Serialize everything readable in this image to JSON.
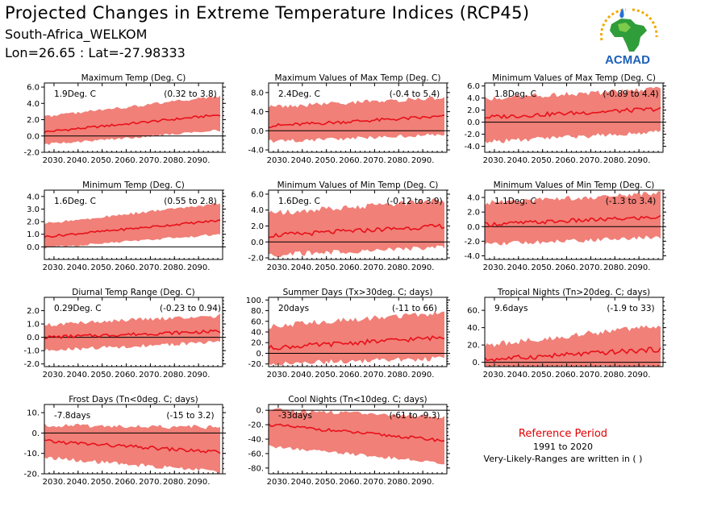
{
  "header": {
    "title": "Projected Changes in Extreme Temperature Indices (RCP45)",
    "subtitle_location": "South-Africa_WELKOM",
    "subtitle_coords": "Lon=26.65 : Lat=-27.98333"
  },
  "logo": {
    "text": "ACMAD",
    "icon": "acmad-africa-logo"
  },
  "legend_note": {
    "title": "Reference Period",
    "years": "1991 to 2020",
    "note": "Very-Likely-Ranges are written in ( )"
  },
  "colors": {
    "band": "#f08078",
    "line": "#e8101a",
    "zero": "#000000",
    "ref_title": "#e00000"
  },
  "chart_data": [
    {
      "type": "area",
      "title": "Maximum Temp (Deg. C)",
      "value_text": "1.9Deg. C",
      "range_text": "(0.32 to 3.8)",
      "x_ticks": [
        "2030.",
        "2040.",
        "2050.",
        "2060.",
        "2070.",
        "2080.",
        "2090."
      ],
      "xlim": [
        2026,
        2100
      ],
      "ylim": [
        -2,
        6.5
      ],
      "y_ticks": [
        "-2.0",
        "0.0",
        "2.0",
        "4.0",
        "6.0"
      ],
      "y_tick_values": [
        -2,
        0,
        2,
        4,
        6
      ],
      "center_start": 0.5,
      "center_end": 2.6,
      "lower_start": -0.7,
      "lower_end": 1.0,
      "upper_start": 2.0,
      "upper_end": 4.5,
      "noise": 0.4
    },
    {
      "type": "area",
      "title": "Maximum Values of Max Temp (Deg. C)",
      "value_text": "2.4Deg. C",
      "range_text": "(-0.4 to 5.4)",
      "x_ticks": [
        "2030.",
        "2040.",
        "2050.",
        "2060.",
        "2070.",
        "2080.",
        "2090."
      ],
      "xlim": [
        2026,
        2100
      ],
      "ylim": [
        -4.5,
        10
      ],
      "y_ticks": [
        "-4.0",
        "0.0",
        "4.0",
        "8.0"
      ],
      "y_tick_values": [
        -4,
        0,
        4,
        8
      ],
      "center_start": 1.0,
      "center_end": 3.0,
      "lower_start": -1.5,
      "lower_end": 0.0,
      "upper_start": 4.0,
      "upper_end": 6.0,
      "noise": 1.0
    },
    {
      "type": "area",
      "title": "Minimum Values of Max Temp (Deg. C)",
      "value_text": "1.8Deg. C",
      "range_text": "(-0.89 to 4.4)",
      "x_ticks": [
        "2030.",
        "2040.",
        "2050.",
        "2060.",
        "2070.",
        "2080.",
        "2090."
      ],
      "xlim": [
        2026,
        2100
      ],
      "ylim": [
        -5,
        6.5
      ],
      "y_ticks": [
        "-4.0",
        "-2.0",
        "0.0",
        "2.0",
        "4.0",
        "6.0"
      ],
      "y_tick_values": [
        -4,
        -2,
        0,
        2,
        4,
        6
      ],
      "center_start": 0.8,
      "center_end": 2.2,
      "lower_start": -2.5,
      "lower_end": -0.8,
      "upper_start": 3.0,
      "upper_end": 4.5,
      "noise": 1.0
    },
    {
      "type": "area",
      "title": "Minimum Temp (Deg. C)",
      "value_text": "1.6Deg. C",
      "range_text": "(0.55 to 2.8)",
      "x_ticks": [
        "2030.",
        "2040.",
        "2050.",
        "2060.",
        "2070.",
        "2080.",
        "2090."
      ],
      "xlim": [
        2026,
        2100
      ],
      "ylim": [
        -1,
        4.5
      ],
      "y_ticks": [
        "0.0",
        "1.0",
        "2.0",
        "3.0",
        "4.0"
      ],
      "y_tick_values": [
        0,
        1,
        2,
        3,
        4
      ],
      "center_start": 0.8,
      "center_end": 2.1,
      "lower_start": 0.1,
      "lower_end": 1.2,
      "upper_start": 1.6,
      "upper_end": 3.2,
      "noise": 0.25
    },
    {
      "type": "area",
      "title": "Minimum Values of Min Temp (Deg. C)",
      "value_text": "1.6Deg. C",
      "range_text": "(-0.12 to 3.9)",
      "x_ticks": [
        "2030.",
        "2040.",
        "2050.",
        "2060.",
        "2070.",
        "2080.",
        "2090."
      ],
      "xlim": [
        2026,
        2100
      ],
      "ylim": [
        -2.2,
        6.5
      ],
      "y_ticks": [
        "-2.0",
        "0.0",
        "2.0",
        "4.0",
        "6.0"
      ],
      "y_tick_values": [
        -2,
        0,
        2,
        4,
        6
      ],
      "center_start": 0.8,
      "center_end": 2.0,
      "lower_start": -1.0,
      "lower_end": 0.0,
      "upper_start": 2.8,
      "upper_end": 4.5,
      "noise": 0.8
    },
    {
      "type": "area",
      "title": "Minimum Values of Min Temp (Deg. C)",
      "value_text": "1.1Deg. C",
      "range_text": "(-1.3 to 3.4)",
      "x_ticks": [
        "2030.",
        "2040.",
        "2050.",
        "2060.",
        "2070.",
        "2080.",
        "2090."
      ],
      "xlim": [
        2026,
        2100
      ],
      "ylim": [
        -4.5,
        5
      ],
      "y_ticks": [
        "-4.0",
        "-2.0",
        "0.0",
        "2.0",
        "4.0"
      ],
      "y_tick_values": [
        -4,
        -2,
        0,
        2,
        4
      ],
      "center_start": 0.3,
      "center_end": 1.3,
      "lower_start": -1.8,
      "lower_end": -0.8,
      "upper_start": 2.5,
      "upper_end": 3.8,
      "noise": 0.8
    },
    {
      "type": "area",
      "title": "Diurnal Temp Range (Deg. C)",
      "value_text": "0.29Deg. C",
      "range_text": "(-0.23 to 0.94)",
      "x_ticks": [
        "2030.",
        "2040.",
        "2050.",
        "2060.",
        "2070.",
        "2080.",
        "2090."
      ],
      "xlim": [
        2026,
        2100
      ],
      "ylim": [
        -2.2,
        3
      ],
      "y_ticks": [
        "-2.0",
        "-1.0",
        "0.0",
        "1.0",
        "2.0"
      ],
      "y_tick_values": [
        -2,
        -1,
        0,
        1,
        2
      ],
      "center_start": 0.0,
      "center_end": 0.45,
      "lower_start": -0.7,
      "lower_end": -0.1,
      "upper_start": 0.6,
      "upper_end": 1.3,
      "noise": 0.35
    },
    {
      "type": "area",
      "title": "Summer Days (Tx>30deg. C; days)",
      "value_text": "20days",
      "range_text": "(-11 to 66)",
      "x_ticks": [
        "2030.",
        "2040.",
        "2050.",
        "2060.",
        "2070.",
        "2080.",
        "2090."
      ],
      "xlim": [
        2026,
        2100
      ],
      "ylim": [
        -25,
        105
      ],
      "y_ticks": [
        "-20.",
        "0.",
        "20.",
        "40.",
        "60.",
        "80.",
        "100."
      ],
      "y_tick_values": [
        -20,
        0,
        20,
        40,
        60,
        80,
        100
      ],
      "center_start": 10,
      "center_end": 30,
      "lower_start": -10,
      "lower_end": 0,
      "upper_start": 40,
      "upper_end": 65,
      "noise": 12
    },
    {
      "type": "area",
      "title": "Tropical Nights (Tn>20deg. C; days)",
      "value_text": "9.6days",
      "range_text": "(-1.9 to 33)",
      "x_ticks": [
        "2030.",
        "2040.",
        "2050.",
        "2060.",
        "2070.",
        "2080.",
        "2090."
      ],
      "xlim": [
        2026,
        2100
      ],
      "ylim": [
        -5,
        75
      ],
      "y_ticks": [
        "0.",
        "20.",
        "40.",
        "60."
      ],
      "y_tick_values": [
        0,
        20,
        40,
        60
      ],
      "center_start": 3,
      "center_end": 15,
      "lower_start": 0,
      "lower_end": 0,
      "upper_start": 12,
      "upper_end": 35,
      "noise": 8
    },
    {
      "type": "area",
      "title": "Frost Days (Tn<0deg. C; days)",
      "value_text": "-7.8days",
      "range_text": "(-15 to 3.2)",
      "x_ticks": [
        "2030.",
        "2040.",
        "2050.",
        "2060.",
        "2070.",
        "2080.",
        "2090."
      ],
      "xlim": [
        2026,
        2100
      ],
      "ylim": [
        -20,
        14
      ],
      "y_ticks": [
        "-20.",
        "-10.",
        "0.",
        "10."
      ],
      "y_tick_values": [
        -20,
        -10,
        0,
        10
      ],
      "center_start": -4,
      "center_end": -9.5,
      "lower_start": -10,
      "lower_end": -17,
      "upper_start": 1.5,
      "upper_end": 0.5,
      "noise": 2.5
    },
    {
      "type": "area",
      "title": "Cool Nights (Tn<10deg. C; days)",
      "value_text": "-33days",
      "range_text": "(-61 to -9.3)",
      "x_ticks": [
        "2030.",
        "2040.",
        "2050.",
        "2060.",
        "2070.",
        "2080.",
        "2090."
      ],
      "xlim": [
        2026,
        2100
      ],
      "ylim": [
        -88,
        8
      ],
      "y_ticks": [
        "-80.",
        "-60.",
        "-40.",
        "-20.",
        "0."
      ],
      "y_tick_values": [
        -80,
        -60,
        -40,
        -20,
        0
      ],
      "center_start": -20,
      "center_end": -42,
      "lower_start": -45,
      "lower_end": -68,
      "upper_start": -5,
      "upper_end": -15,
      "noise": 6
    }
  ]
}
